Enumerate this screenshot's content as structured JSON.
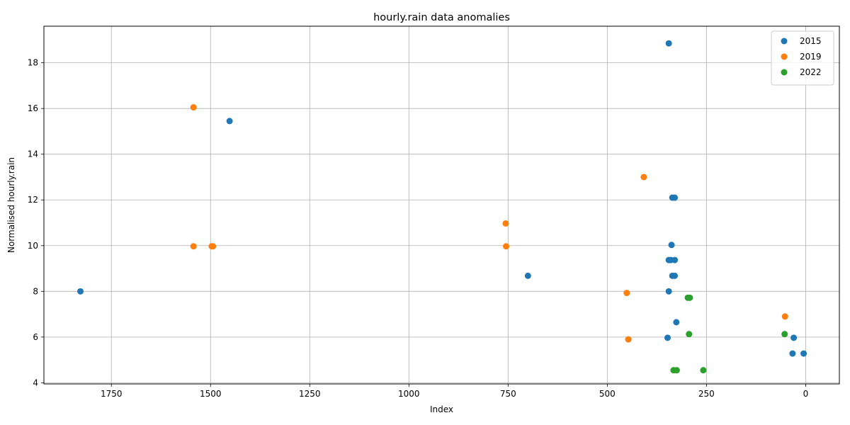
{
  "chart_data": {
    "type": "scatter",
    "title": "hourly.rain data anomalies",
    "xlabel": "Index",
    "ylabel": "Normalised hourly.rain",
    "x_inverted": true,
    "xlim": [
      1920,
      -85
    ],
    "ylim": [
      3.95,
      19.6
    ],
    "x_ticks": [
      1750,
      1500,
      1250,
      1000,
      750,
      500,
      250,
      0
    ],
    "y_ticks": [
      4,
      6,
      8,
      10,
      12,
      14,
      16,
      18
    ],
    "grid": true,
    "legend_position": "top-right",
    "series": [
      {
        "name": "2015",
        "color": "#1f77b4",
        "points": [
          [
            1828,
            8.0
          ],
          [
            1452,
            15.45
          ],
          [
            700,
            8.68
          ],
          [
            345,
            18.85
          ],
          [
            336,
            12.1
          ],
          [
            330,
            12.1
          ],
          [
            338,
            10.03
          ],
          [
            345,
            9.37
          ],
          [
            340,
            9.37
          ],
          [
            330,
            9.37
          ],
          [
            336,
            8.68
          ],
          [
            330,
            8.68
          ],
          [
            345,
            8.0
          ],
          [
            326,
            6.65
          ],
          [
            348,
            5.97
          ],
          [
            30,
            5.97
          ],
          [
            33,
            5.28
          ],
          [
            5,
            5.28
          ]
        ]
      },
      {
        "name": "2019",
        "color": "#ff7f0e",
        "points": [
          [
            1543,
            16.05
          ],
          [
            1543,
            9.97
          ],
          [
            1497,
            9.97
          ],
          [
            1494,
            9.97
          ],
          [
            756,
            10.97
          ],
          [
            755,
            9.97
          ],
          [
            408,
            13.0
          ],
          [
            451,
            7.93
          ],
          [
            447,
            5.9
          ],
          [
            52,
            6.9
          ]
        ]
      },
      {
        "name": "2022",
        "color": "#2ca02c",
        "points": [
          [
            297,
            7.72
          ],
          [
            292,
            7.72
          ],
          [
            294,
            6.13
          ],
          [
            53,
            6.13
          ],
          [
            333,
            4.55
          ],
          [
            325,
            4.55
          ],
          [
            258,
            4.55
          ]
        ]
      }
    ]
  }
}
